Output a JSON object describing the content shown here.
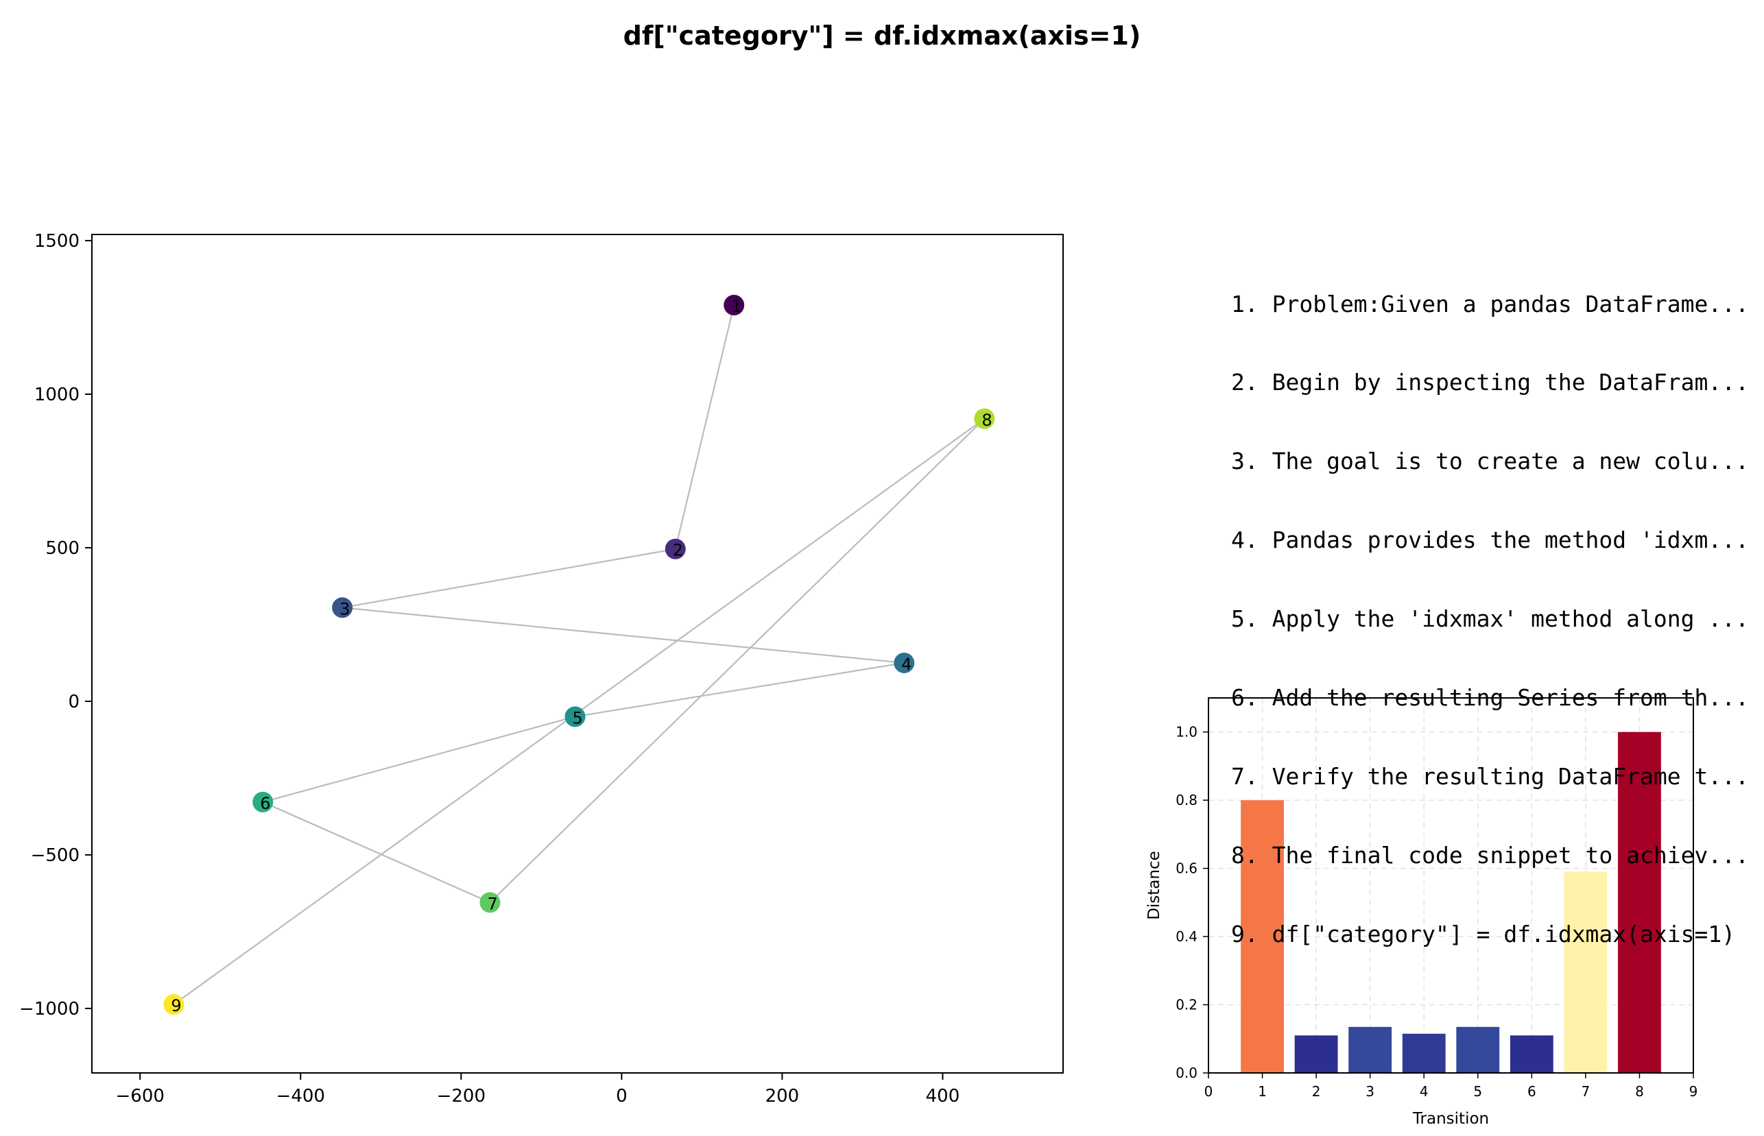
{
  "title": "df[\"category\"] = df.idxmax(axis=1)",
  "steps": [
    "1. Problem:Given a pandas DataFrame...",
    "2. Begin by inspecting the DataFram...",
    "3. The goal is to create a new colu...",
    "4. Pandas provides the method 'idxm...",
    "5. Apply the 'idxmax' method along ...",
    "6. Add the resulting Series from th...",
    "7. Verify the resulting DataFrame t...",
    "8. The final code snippet to achiev...",
    "9. df[\"category\"] = df.idxmax(axis=1)"
  ],
  "chart_data": [
    {
      "type": "scatter",
      "title": "",
      "xlabel": "",
      "ylabel": "",
      "xlim": [
        -660,
        550
      ],
      "ylim": [
        -1210,
        1520
      ],
      "xticks": [
        -600,
        -400,
        -200,
        0,
        200,
        400
      ],
      "yticks": [
        -1000,
        -500,
        0,
        500,
        1000,
        1500
      ],
      "grid": false,
      "connected_in_order": true,
      "points": [
        {
          "label": "1",
          "x": 140,
          "y": 1290,
          "color": "#440154"
        },
        {
          "label": "2",
          "x": 67,
          "y": 496,
          "color": "#472d7b"
        },
        {
          "label": "3",
          "x": -348,
          "y": 305,
          "color": "#3b528b"
        },
        {
          "label": "4",
          "x": 352,
          "y": 125,
          "color": "#2c728e"
        },
        {
          "label": "5",
          "x": -58,
          "y": -50,
          "color": "#21918c"
        },
        {
          "label": "6",
          "x": -447,
          "y": -328,
          "color": "#28ae80"
        },
        {
          "label": "7",
          "x": -164,
          "y": -655,
          "color": "#5ec962"
        },
        {
          "label": "8",
          "x": 452,
          "y": 920,
          "color": "#addc30"
        },
        {
          "label": "9",
          "x": -558,
          "y": -987,
          "color": "#fde725"
        }
      ],
      "line_color": "#bbbbbb"
    },
    {
      "type": "bar",
      "title": "",
      "xlabel": "Transition",
      "ylabel": "Distance",
      "categories": [
        "1",
        "2",
        "3",
        "4",
        "5",
        "6",
        "7",
        "8"
      ],
      "values": [
        0.8,
        0.11,
        0.135,
        0.115,
        0.135,
        0.11,
        0.59,
        1.0
      ],
      "colors": [
        "#f57748",
        "#2c2f8f",
        "#34489c",
        "#2f3b95",
        "#34489c",
        "#2c2f8f",
        "#fff2aa",
        "#a50026"
      ],
      "xlim": [
        0,
        9
      ],
      "ylim": [
        0,
        1.1
      ],
      "xticks": [
        0,
        1,
        2,
        3,
        4,
        5,
        6,
        7,
        8,
        9
      ],
      "yticks": [
        0.0,
        0.2,
        0.4,
        0.6,
        0.8,
        1.0
      ],
      "grid": true
    }
  ]
}
